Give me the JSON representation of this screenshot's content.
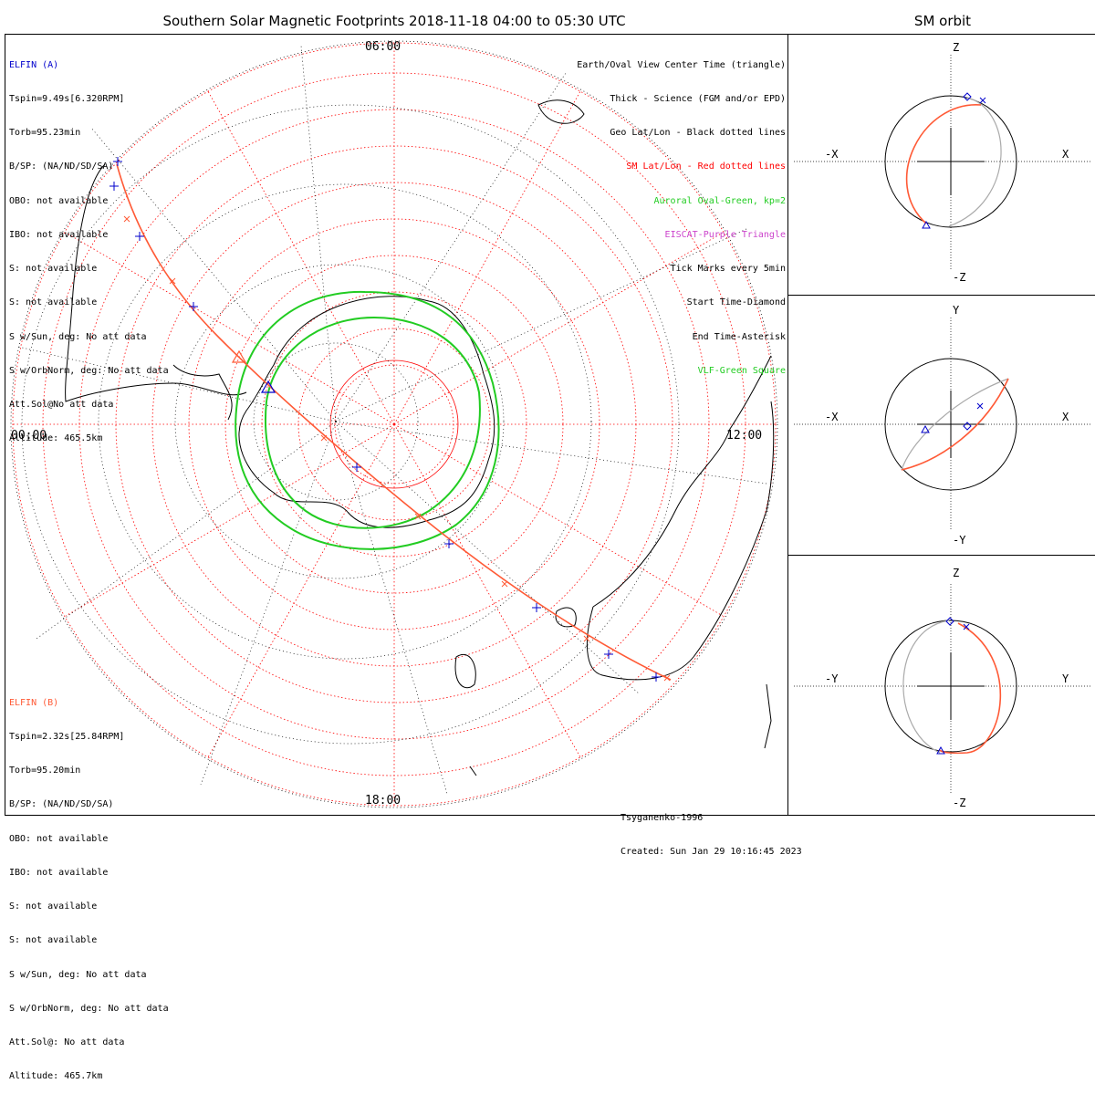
{
  "title": "Southern Solar Magnetic Footprints 2018-11-18 04:00 to 05:30 UTC",
  "orbit_panel_title": "SM orbit",
  "mlt_labels": {
    "top": "06:00",
    "left": "00:00",
    "right": "12:00",
    "bottom": "18:00"
  },
  "elfin_a": {
    "name": "ELFIN (A)",
    "color": "#0000cc",
    "lines": [
      "Tspin=9.49s[6.320RPM]",
      "Torb=95.23min",
      "B/SP: (NA/ND/SD/SA)",
      "OBO: not available",
      "IBO: not available",
      "S: not available",
      "S: not available",
      "S w/Sun, deg: No att data",
      "S w/OrbNorm, deg: No att data",
      "Att.Sol@No att data",
      "Altitude: 465.5km"
    ]
  },
  "elfin_b": {
    "name": "ELFIN (B)",
    "color": "#ff5a36",
    "lines": [
      "Tspin=2.32s[25.84RPM]",
      "Torb=95.20min",
      "B/SP: (NA/ND/SD/SA)",
      "OBO: not available",
      "IBO: not available",
      "S: not available",
      "S: not available",
      "S w/Sun, deg: No att data",
      "S w/OrbNorm, deg: No att data",
      "Att.Sol@: No att data",
      "Altitude: 465.7km"
    ]
  },
  "legend": [
    {
      "text": "Earth/Oval View Center Time (triangle)",
      "color": "#000000"
    },
    {
      "text": "Thick - Science (FGM and/or EPD)",
      "color": "#000000"
    },
    {
      "text": "Geo Lat/Lon - Black dotted lines",
      "color": "#000000"
    },
    {
      "text": "SM Lat/Lon - Red dotted lines",
      "color": "#ff0000"
    },
    {
      "text": "Auroral Oval-Green, kp=2",
      "color": "#22cc22"
    },
    {
      "text": "EISCAT-Purple Triangle",
      "color": "#cc44cc"
    },
    {
      "text": "Tick Marks every 5min",
      "color": "#000000"
    },
    {
      "text": "Start Time-Diamond",
      "color": "#000000"
    },
    {
      "text": "End Time-Asterisk",
      "color": "#000000"
    },
    {
      "text": "VLF-Green Square",
      "color": "#22cc22"
    }
  ],
  "credits": [
    "Tsyganenko-1996",
    "Created: Sun Jan 29 10:16:45 2023"
  ],
  "orbit_panels": [
    {
      "top": "Z",
      "bottom": "-Z",
      "left": "-X",
      "right": "X"
    },
    {
      "top": "Y",
      "bottom": "-Y",
      "left": "-X",
      "right": "X"
    },
    {
      "top": "Z",
      "bottom": "-Z",
      "left": "-Y",
      "right": "Y"
    }
  ],
  "colors": {
    "sm_grid": "#ff0000",
    "geo_grid": "#000000",
    "oval": "#22cc22",
    "track_a": "#0000cc",
    "track_b": "#ff5a36",
    "orbit_gray": "#aaaaaa"
  }
}
